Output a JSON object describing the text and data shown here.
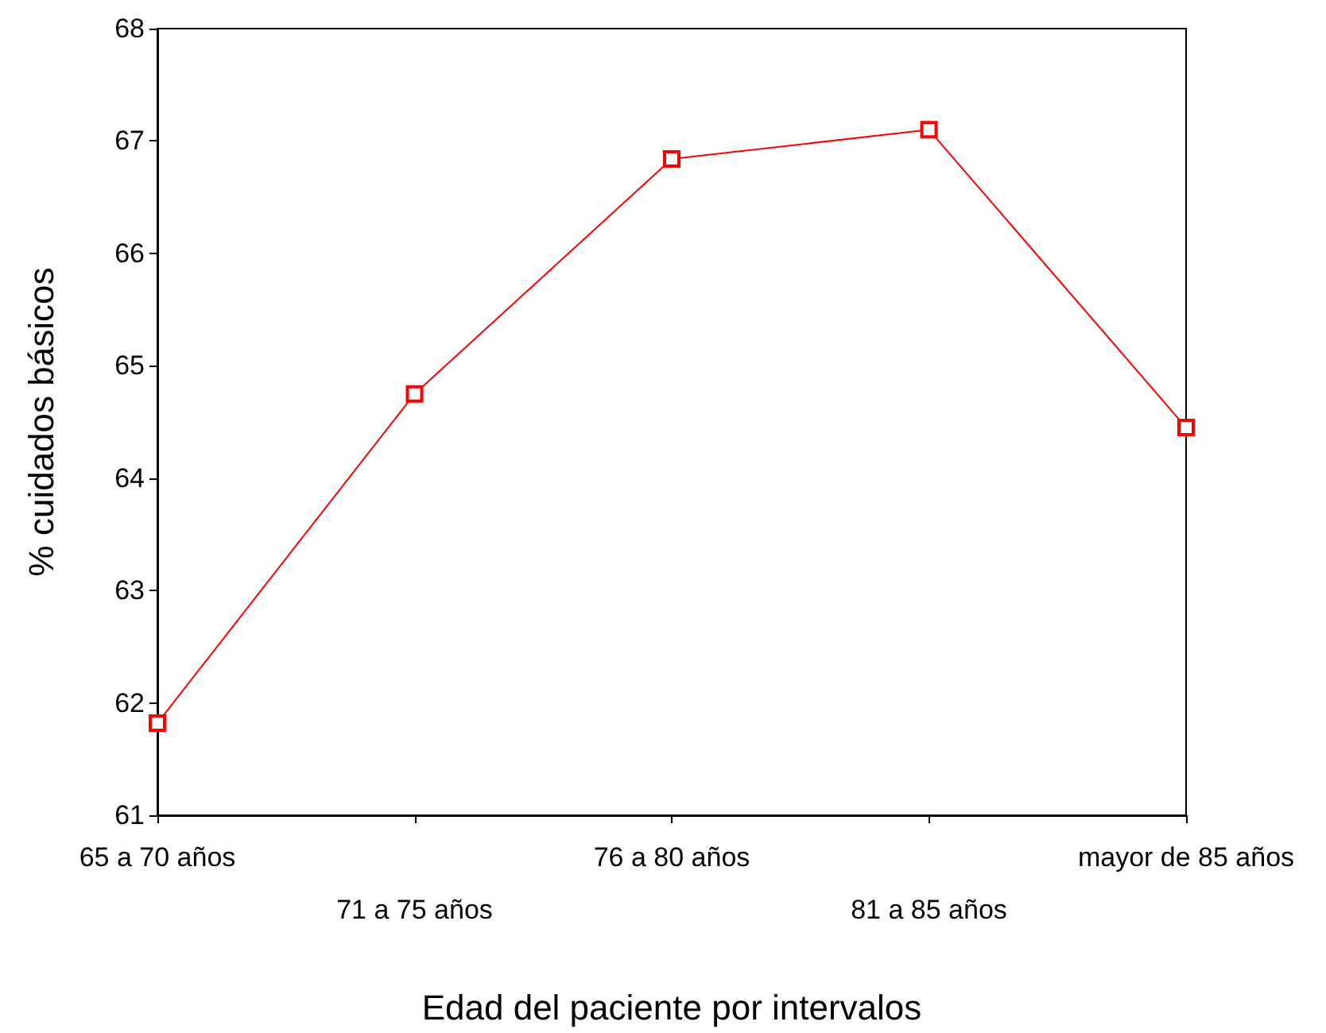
{
  "chart_data": {
    "type": "line",
    "xlabel": "Edad del paciente por intervalos",
    "ylabel": "% cuidados básicos",
    "categories": [
      "65 a 70 años",
      "71 a 75 años",
      "76 a 80 años",
      "81 a 85 años",
      "mayor de 85 años"
    ],
    "series": [
      {
        "color": "#ff0000",
        "values": [
          61.82,
          64.75,
          66.84,
          67.1,
          64.45
        ]
      }
    ],
    "ylim": [
      61,
      68
    ],
    "yticks": [
      61,
      62,
      63,
      64,
      65,
      66,
      67,
      68
    ],
    "grid": false,
    "marker": "square",
    "line_style": "solid"
  }
}
